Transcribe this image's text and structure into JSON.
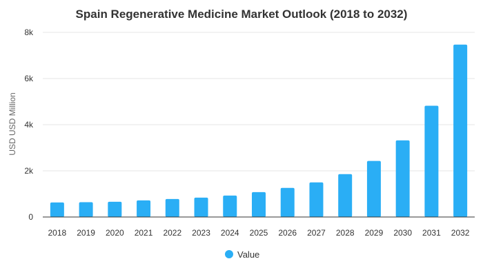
{
  "chart_data": {
    "type": "bar",
    "title": "Spain Regenerative Medicine Market Outlook (2018 to 2032)",
    "xlabel": "",
    "ylabel": "USD USD Million",
    "ylim": [
      0,
      8000
    ],
    "yticks": [
      0,
      2000,
      4000,
      6000,
      8000
    ],
    "ytick_labels": [
      "0",
      "2k",
      "4k",
      "6k",
      "8k"
    ],
    "grid": true,
    "legend_position": "bottom",
    "categories": [
      "2018",
      "2019",
      "2020",
      "2021",
      "2022",
      "2023",
      "2024",
      "2025",
      "2026",
      "2027",
      "2028",
      "2029",
      "2030",
      "2031",
      "2032"
    ],
    "series": [
      {
        "name": "Value",
        "color": "#2aaef5",
        "values": [
          630,
          640,
          660,
          720,
          780,
          840,
          930,
          1080,
          1260,
          1500,
          1860,
          2430,
          3320,
          4820,
          7470
        ]
      }
    ]
  }
}
